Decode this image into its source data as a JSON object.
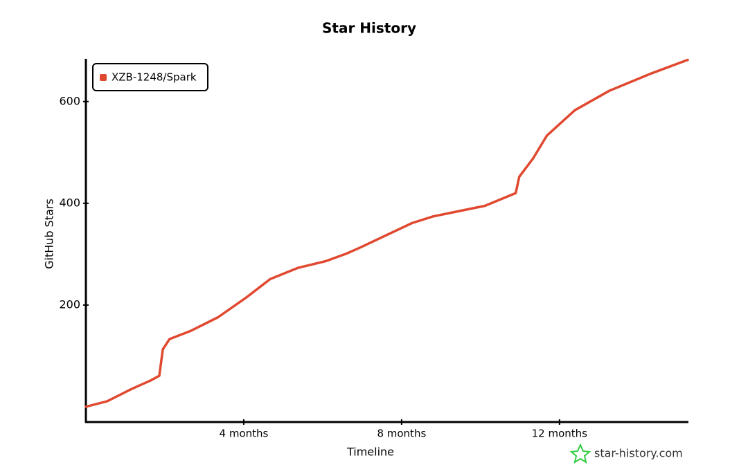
{
  "chart_data": {
    "type": "line",
    "title": "Star History",
    "x_label": "Timeline",
    "y_label": "GitHub Stars",
    "watermark": "star-history.com",
    "x": [
      0,
      0.54,
      1.16,
      1.65,
      1.86,
      1.95,
      2.12,
      2.65,
      3.35,
      4.05,
      4.67,
      5.37,
      6.07,
      6.6,
      6.95,
      8.26,
      8.79,
      10.11,
      10.89,
      10.98,
      11.33,
      11.68,
      12.39,
      13.26,
      14.32,
      15.25
    ],
    "series": [
      {
        "name": "XZB-1248/Spark",
        "color": "#e0482f",
        "values": [
          0,
          11,
          35,
          52,
          61,
          113,
          133,
          149,
          176,
          214,
          251,
          273,
          286,
          301,
          313,
          361,
          374,
          395,
          420,
          452,
          488,
          533,
          583,
          621,
          655,
          682
        ]
      }
    ],
    "xlim": [
      0,
      15.25
    ],
    "xticks": [
      {
        "value": 4,
        "label": "4 months"
      },
      {
        "value": 8,
        "label": "8 months"
      },
      {
        "value": 12,
        "label": "12 months"
      }
    ],
    "ylim": [
      -30,
      684
    ],
    "yticks": [
      200,
      400,
      600
    ],
    "legend": "upper left"
  }
}
